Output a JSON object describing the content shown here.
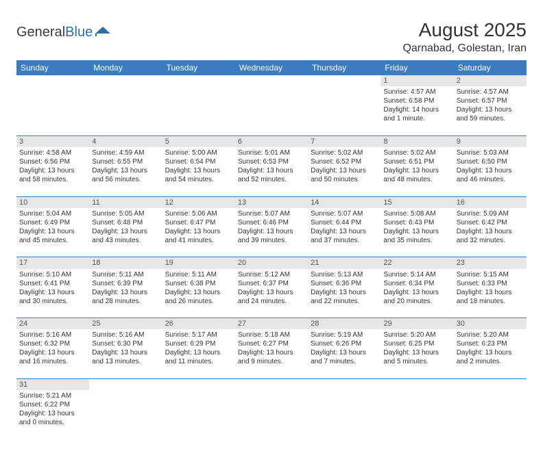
{
  "logo": {
    "word1": "General",
    "word2": "Blue"
  },
  "title": "August 2025",
  "location": "Qarnabad, Golestan, Iran",
  "colors": {
    "header_bg": "#3b7bbf",
    "header_fg": "#ffffff",
    "daynum_bg": "#e6e6e6",
    "row_divider": "#3b7bbf",
    "text": "#333333",
    "logo_blue": "#2f6fa8"
  },
  "weekdays": [
    "Sunday",
    "Monday",
    "Tuesday",
    "Wednesday",
    "Thursday",
    "Friday",
    "Saturday"
  ],
  "weeks": [
    {
      "nums": [
        "",
        "",
        "",
        "",
        "",
        "1",
        "2"
      ],
      "cells": [
        null,
        null,
        null,
        null,
        null,
        {
          "sunrise": "4:57 AM",
          "sunset": "6:58 PM",
          "daylight": "14 hours and 1 minute."
        },
        {
          "sunrise": "4:57 AM",
          "sunset": "6:57 PM",
          "daylight": "13 hours and 59 minutes."
        }
      ]
    },
    {
      "nums": [
        "3",
        "4",
        "5",
        "6",
        "7",
        "8",
        "9"
      ],
      "cells": [
        {
          "sunrise": "4:58 AM",
          "sunset": "6:56 PM",
          "daylight": "13 hours and 58 minutes."
        },
        {
          "sunrise": "4:59 AM",
          "sunset": "6:55 PM",
          "daylight": "13 hours and 56 minutes."
        },
        {
          "sunrise": "5:00 AM",
          "sunset": "6:54 PM",
          "daylight": "13 hours and 54 minutes."
        },
        {
          "sunrise": "5:01 AM",
          "sunset": "6:53 PM",
          "daylight": "13 hours and 52 minutes."
        },
        {
          "sunrise": "5:02 AM",
          "sunset": "6:52 PM",
          "daylight": "13 hours and 50 minutes."
        },
        {
          "sunrise": "5:02 AM",
          "sunset": "6:51 PM",
          "daylight": "13 hours and 48 minutes."
        },
        {
          "sunrise": "5:03 AM",
          "sunset": "6:50 PM",
          "daylight": "13 hours and 46 minutes."
        }
      ]
    },
    {
      "nums": [
        "10",
        "11",
        "12",
        "13",
        "14",
        "15",
        "16"
      ],
      "cells": [
        {
          "sunrise": "5:04 AM",
          "sunset": "6:49 PM",
          "daylight": "13 hours and 45 minutes."
        },
        {
          "sunrise": "5:05 AM",
          "sunset": "6:48 PM",
          "daylight": "13 hours and 43 minutes."
        },
        {
          "sunrise": "5:06 AM",
          "sunset": "6:47 PM",
          "daylight": "13 hours and 41 minutes."
        },
        {
          "sunrise": "5:07 AM",
          "sunset": "6:46 PM",
          "daylight": "13 hours and 39 minutes."
        },
        {
          "sunrise": "5:07 AM",
          "sunset": "6:44 PM",
          "daylight": "13 hours and 37 minutes."
        },
        {
          "sunrise": "5:08 AM",
          "sunset": "6:43 PM",
          "daylight": "13 hours and 35 minutes."
        },
        {
          "sunrise": "5:09 AM",
          "sunset": "6:42 PM",
          "daylight": "13 hours and 32 minutes."
        }
      ]
    },
    {
      "nums": [
        "17",
        "18",
        "19",
        "20",
        "21",
        "22",
        "23"
      ],
      "cells": [
        {
          "sunrise": "5:10 AM",
          "sunset": "6:41 PM",
          "daylight": "13 hours and 30 minutes."
        },
        {
          "sunrise": "5:11 AM",
          "sunset": "6:39 PM",
          "daylight": "13 hours and 28 minutes."
        },
        {
          "sunrise": "5:11 AM",
          "sunset": "6:38 PM",
          "daylight": "13 hours and 26 minutes."
        },
        {
          "sunrise": "5:12 AM",
          "sunset": "6:37 PM",
          "daylight": "13 hours and 24 minutes."
        },
        {
          "sunrise": "5:13 AM",
          "sunset": "6:36 PM",
          "daylight": "13 hours and 22 minutes."
        },
        {
          "sunrise": "5:14 AM",
          "sunset": "6:34 PM",
          "daylight": "13 hours and 20 minutes."
        },
        {
          "sunrise": "5:15 AM",
          "sunset": "6:33 PM",
          "daylight": "13 hours and 18 minutes."
        }
      ]
    },
    {
      "nums": [
        "24",
        "25",
        "26",
        "27",
        "28",
        "29",
        "30"
      ],
      "cells": [
        {
          "sunrise": "5:16 AM",
          "sunset": "6:32 PM",
          "daylight": "13 hours and 16 minutes."
        },
        {
          "sunrise": "5:16 AM",
          "sunset": "6:30 PM",
          "daylight": "13 hours and 13 minutes."
        },
        {
          "sunrise": "5:17 AM",
          "sunset": "6:29 PM",
          "daylight": "13 hours and 11 minutes."
        },
        {
          "sunrise": "5:18 AM",
          "sunset": "6:27 PM",
          "daylight": "13 hours and 9 minutes."
        },
        {
          "sunrise": "5:19 AM",
          "sunset": "6:26 PM",
          "daylight": "13 hours and 7 minutes."
        },
        {
          "sunrise": "5:20 AM",
          "sunset": "6:25 PM",
          "daylight": "13 hours and 5 minutes."
        },
        {
          "sunrise": "5:20 AM",
          "sunset": "6:23 PM",
          "daylight": "13 hours and 2 minutes."
        }
      ]
    },
    {
      "nums": [
        "31",
        "",
        "",
        "",
        "",
        "",
        ""
      ],
      "cells": [
        {
          "sunrise": "5:21 AM",
          "sunset": "6:22 PM",
          "daylight": "13 hours and 0 minutes."
        },
        null,
        null,
        null,
        null,
        null,
        null
      ]
    }
  ],
  "labels": {
    "sunrise": "Sunrise: ",
    "sunset": "Sunset: ",
    "daylight": "Daylight: "
  }
}
